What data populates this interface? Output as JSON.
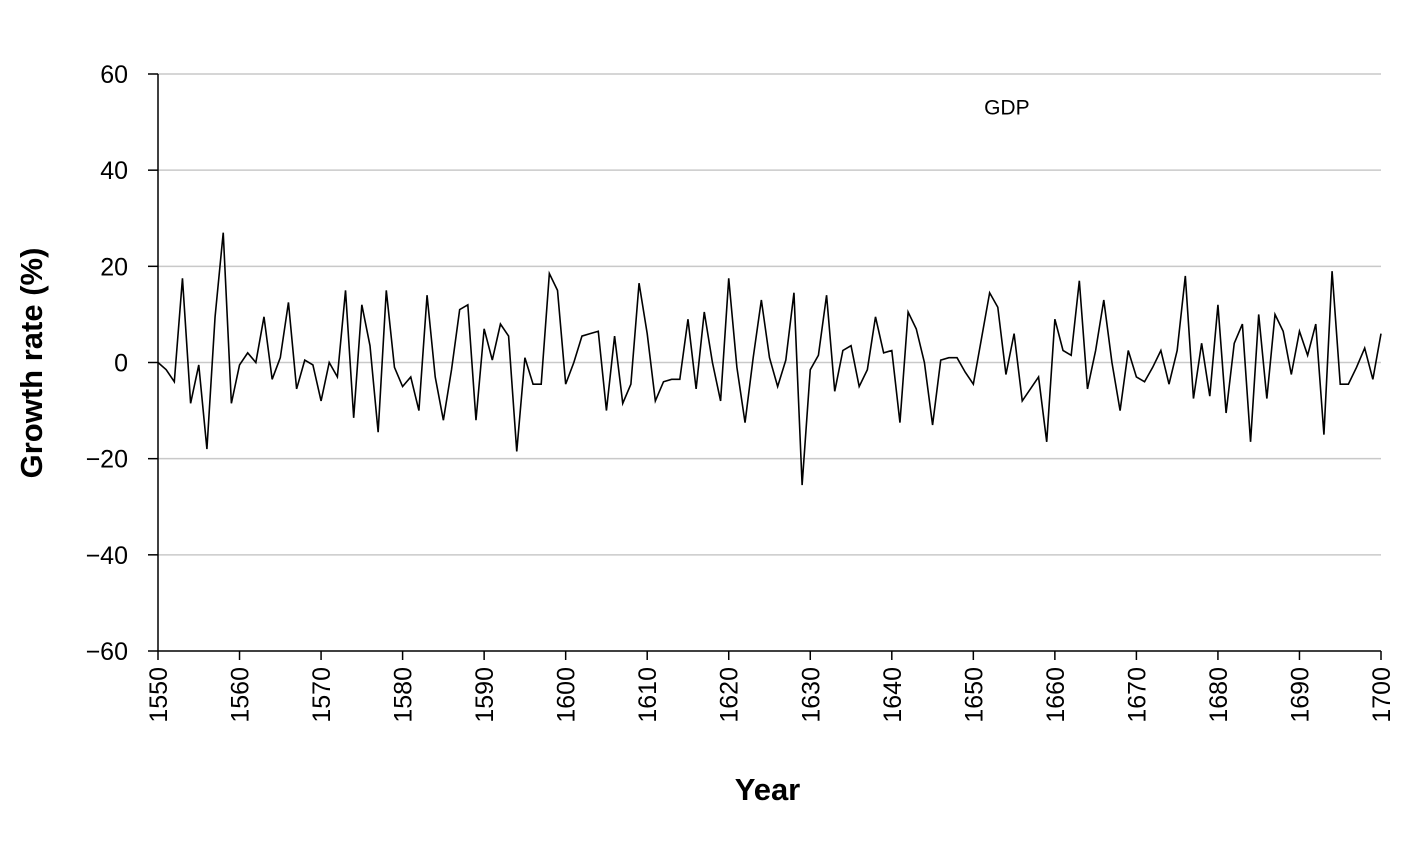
{
  "chart_data": {
    "type": "line",
    "title": "",
    "xlabel": "Year",
    "ylabel": "Growth rate (%)",
    "xlim": [
      1550,
      1700
    ],
    "ylim": [
      -60,
      60
    ],
    "x_ticks": [
      1550,
      1560,
      1570,
      1580,
      1590,
      1600,
      1610,
      1620,
      1630,
      1640,
      1650,
      1660,
      1670,
      1680,
      1690,
      1700
    ],
    "y_ticks": [
      60,
      40,
      20,
      0,
      -20,
      -40,
      -60
    ],
    "y_tick_labels": [
      "60",
      "40",
      "20",
      "0",
      "−20",
      "−40",
      "−60"
    ],
    "grid": "horizontal",
    "legend": "none",
    "annotations": [
      {
        "text": "GDP",
        "x": 1655,
        "y": 53
      }
    ],
    "series": [
      {
        "name": "GDP",
        "color": "#000000",
        "x": [
          1550,
          1551,
          1552,
          1553,
          1554,
          1555,
          1556,
          1557,
          1558,
          1559,
          1560,
          1561,
          1562,
          1563,
          1564,
          1565,
          1566,
          1567,
          1568,
          1569,
          1570,
          1571,
          1572,
          1573,
          1574,
          1575,
          1576,
          1577,
          1578,
          1579,
          1580,
          1581,
          1582,
          1583,
          1584,
          1585,
          1586,
          1587,
          1588,
          1589,
          1590,
          1591,
          1592,
          1593,
          1594,
          1595,
          1596,
          1597,
          1598,
          1599,
          1600,
          1601,
          1602,
          1603,
          1604,
          1605,
          1606,
          1607,
          1608,
          1609,
          1610,
          1611,
          1612,
          1613,
          1614,
          1615,
          1616,
          1617,
          1618,
          1619,
          1620,
          1621,
          1622,
          1623,
          1624,
          1625,
          1626,
          1627,
          1628,
          1629,
          1630,
          1631,
          1632,
          1633,
          1634,
          1635,
          1636,
          1637,
          1638,
          1639,
          1640,
          1641,
          1642,
          1643,
          1644,
          1645,
          1646,
          1647,
          1648,
          1649,
          1650,
          1651,
          1652,
          1653,
          1654,
          1655,
          1656,
          1657,
          1658,
          1659,
          1660,
          1661,
          1662,
          1663,
          1664,
          1665,
          1666,
          1667,
          1668,
          1669,
          1670,
          1671,
          1672,
          1673,
          1674,
          1675,
          1676,
          1677,
          1678,
          1679,
          1680,
          1681,
          1682,
          1683,
          1684,
          1685,
          1686,
          1687,
          1688,
          1689,
          1690,
          1691,
          1692,
          1693,
          1694,
          1695,
          1696,
          1697,
          1698,
          1699,
          1700
        ],
        "y": [
          0,
          -1.5,
          -4,
          17.5,
          -8.5,
          -0.5,
          -18,
          9.5,
          27,
          -8.5,
          -0.5,
          2,
          0,
          9.5,
          -3.5,
          1,
          12.5,
          -5.5,
          0.5,
          -0.5,
          -8,
          0,
          -3,
          15,
          -11.5,
          12,
          3.5,
          -14.5,
          15,
          -1,
          -5,
          -3,
          -10,
          14,
          -3,
          -12,
          -1.5,
          11,
          12,
          -12,
          7,
          0.5,
          8,
          5.5,
          -18.5,
          1,
          -4.5,
          -4.5,
          18.5,
          15,
          -4.5,
          0,
          5.5,
          6,
          6.5,
          -10,
          5.5,
          -8.5,
          -4.5,
          16.5,
          6,
          -8,
          -4,
          -3.5,
          -3.5,
          9,
          -5.5,
          10.5,
          0,
          -8,
          17.5,
          -1,
          -12.5,
          1,
          13,
          1,
          -5,
          0.5,
          14.5,
          -25.5,
          -1.5,
          1.5,
          14,
          -6,
          2.5,
          3.5,
          -5,
          -1.5,
          9.5,
          2,
          2.5,
          -12.5,
          10.5,
          7,
          0,
          -13,
          0.5,
          1,
          1,
          -2,
          -4.5,
          5,
          14.5,
          11.5,
          -2.5,
          6,
          -8,
          -5.5,
          -3,
          -16.5,
          9,
          2.5,
          1.5,
          17,
          -5.5,
          2.5,
          13,
          0,
          -10,
          2.5,
          -3,
          -4,
          -1,
          2.5,
          -4.5,
          2.5,
          18,
          -7.5,
          4,
          -7,
          12,
          -10.5,
          4,
          8,
          -16.5,
          10,
          -7.5,
          10,
          6.5,
          -2.5,
          6.5,
          1.5,
          8,
          -15,
          19,
          -4.5,
          -4.5,
          -1,
          3,
          -3.5,
          6
        ]
      }
    ]
  }
}
